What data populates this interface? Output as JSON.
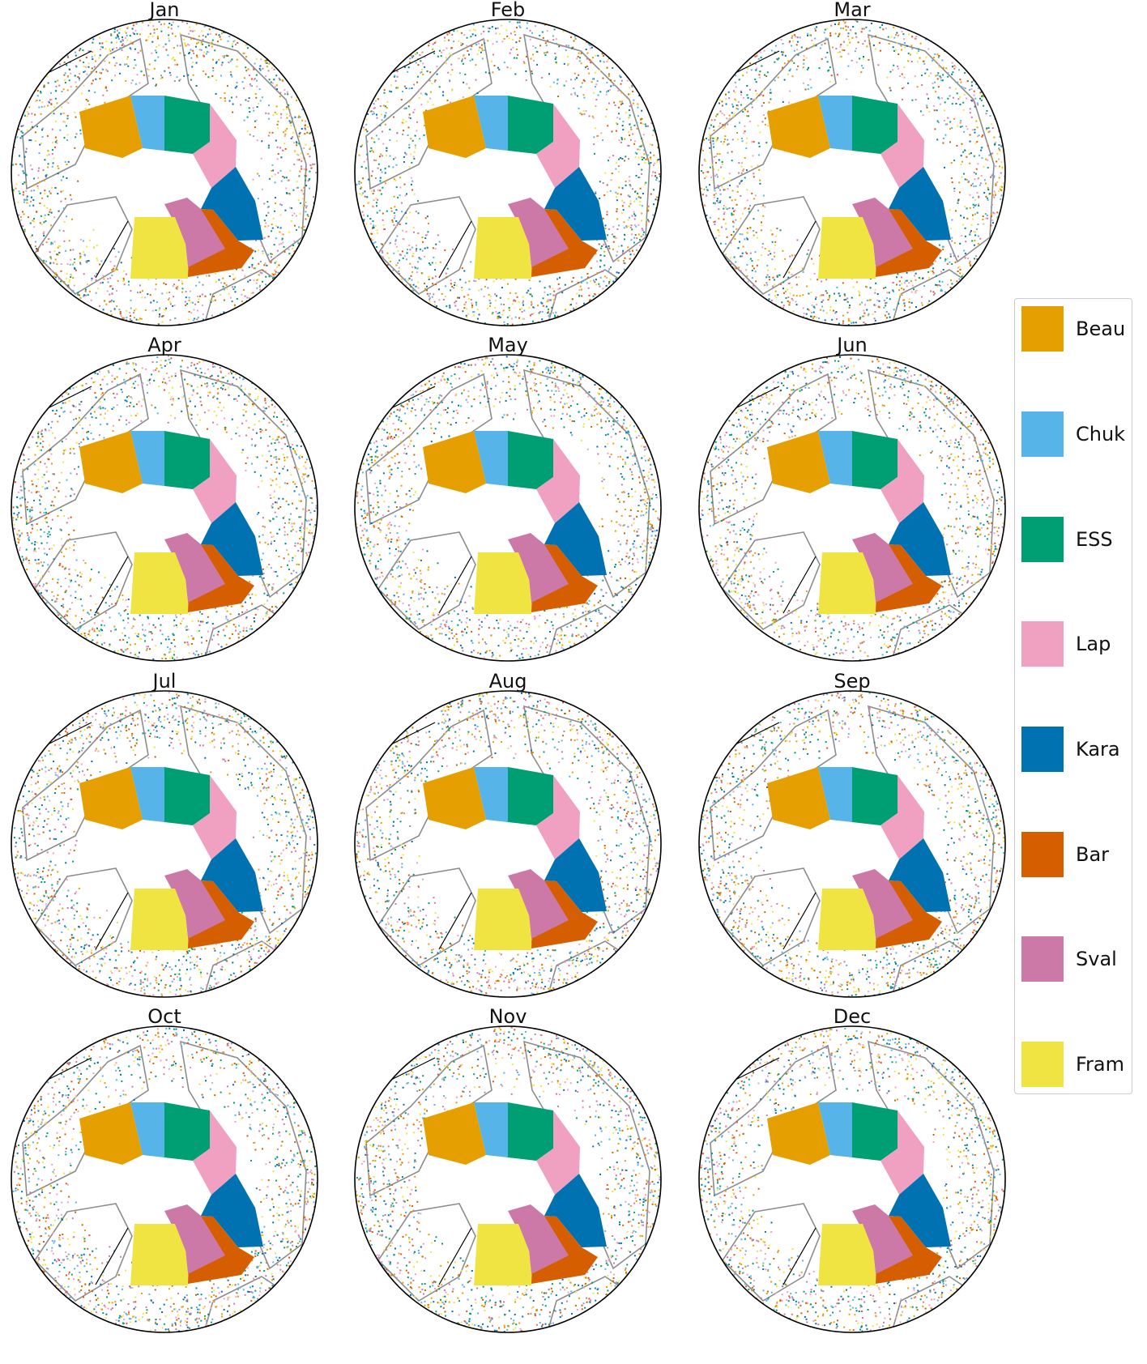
{
  "figure": {
    "panels": [
      {
        "month": "Jan"
      },
      {
        "month": "Feb"
      },
      {
        "month": "Mar"
      },
      {
        "month": "Apr"
      },
      {
        "month": "May"
      },
      {
        "month": "Jun"
      },
      {
        "month": "Jul"
      },
      {
        "month": "Aug"
      },
      {
        "month": "Sep"
      },
      {
        "month": "Oct"
      },
      {
        "month": "Nov"
      },
      {
        "month": "Dec"
      }
    ],
    "scatter_colors": [
      "#e69f00",
      "#56b4e9",
      "#009e73",
      "#f0a0c0",
      "#0072b2",
      "#d55e00",
      "#cc79a7",
      "#f0e442"
    ]
  },
  "legend": {
    "items": [
      {
        "label": "Beau",
        "color": "#e69f00"
      },
      {
        "label": "Chuk",
        "color": "#56b4e9"
      },
      {
        "label": "ESS",
        "color": "#009e73"
      },
      {
        "label": "Lap",
        "color": "#f0a0c0"
      },
      {
        "label": "Kara",
        "color": "#0072b2"
      },
      {
        "label": "Bar",
        "color": "#d55e00"
      },
      {
        "label": "Sval",
        "color": "#cc79a7"
      },
      {
        "label": "Fram",
        "color": "#f0e442"
      }
    ]
  }
}
